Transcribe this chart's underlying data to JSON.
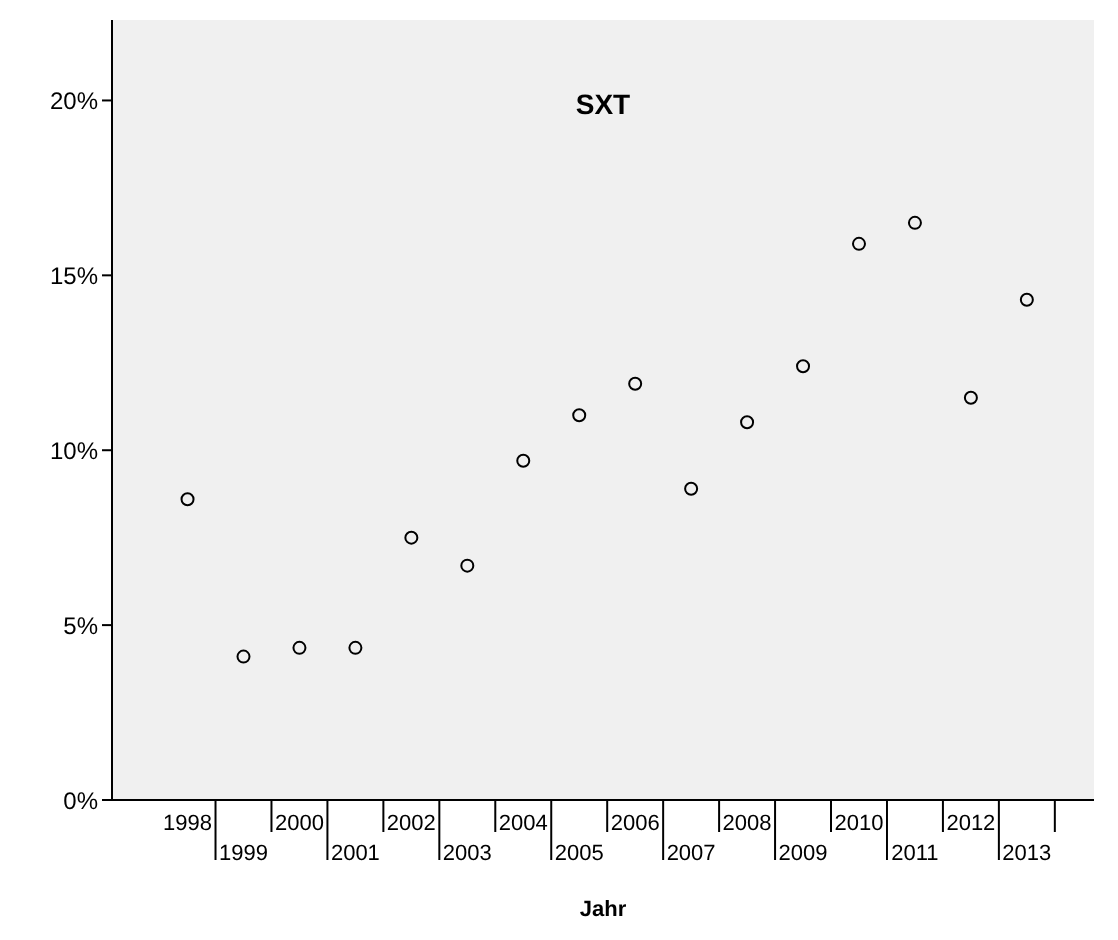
{
  "chart_data": {
    "type": "scatter",
    "title": "SXT",
    "xlabel": "Jahr",
    "categories": [
      "1998",
      "1999",
      "2000",
      "2001",
      "2002",
      "2003",
      "2004",
      "2005",
      "2006",
      "2007",
      "2008",
      "2009",
      "2010",
      "2011",
      "2012",
      "2013"
    ],
    "values": [
      8.6,
      4.1,
      4.35,
      4.35,
      7.5,
      6.7,
      9.7,
      11.0,
      11.9,
      8.9,
      10.8,
      12.4,
      15.9,
      16.5,
      11.5,
      14.3
    ],
    "color": "#000000",
    "marker": "circle",
    "grid": false,
    "legend": false,
    "ylim": [
      0,
      22.3
    ],
    "yticks": [
      {
        "value": 0,
        "label": "0%"
      },
      {
        "value": 5,
        "label": "5%"
      },
      {
        "value": 10,
        "label": "10%"
      },
      {
        "value": 15,
        "label": "15%"
      },
      {
        "value": 20,
        "label": "20%"
      }
    ]
  }
}
